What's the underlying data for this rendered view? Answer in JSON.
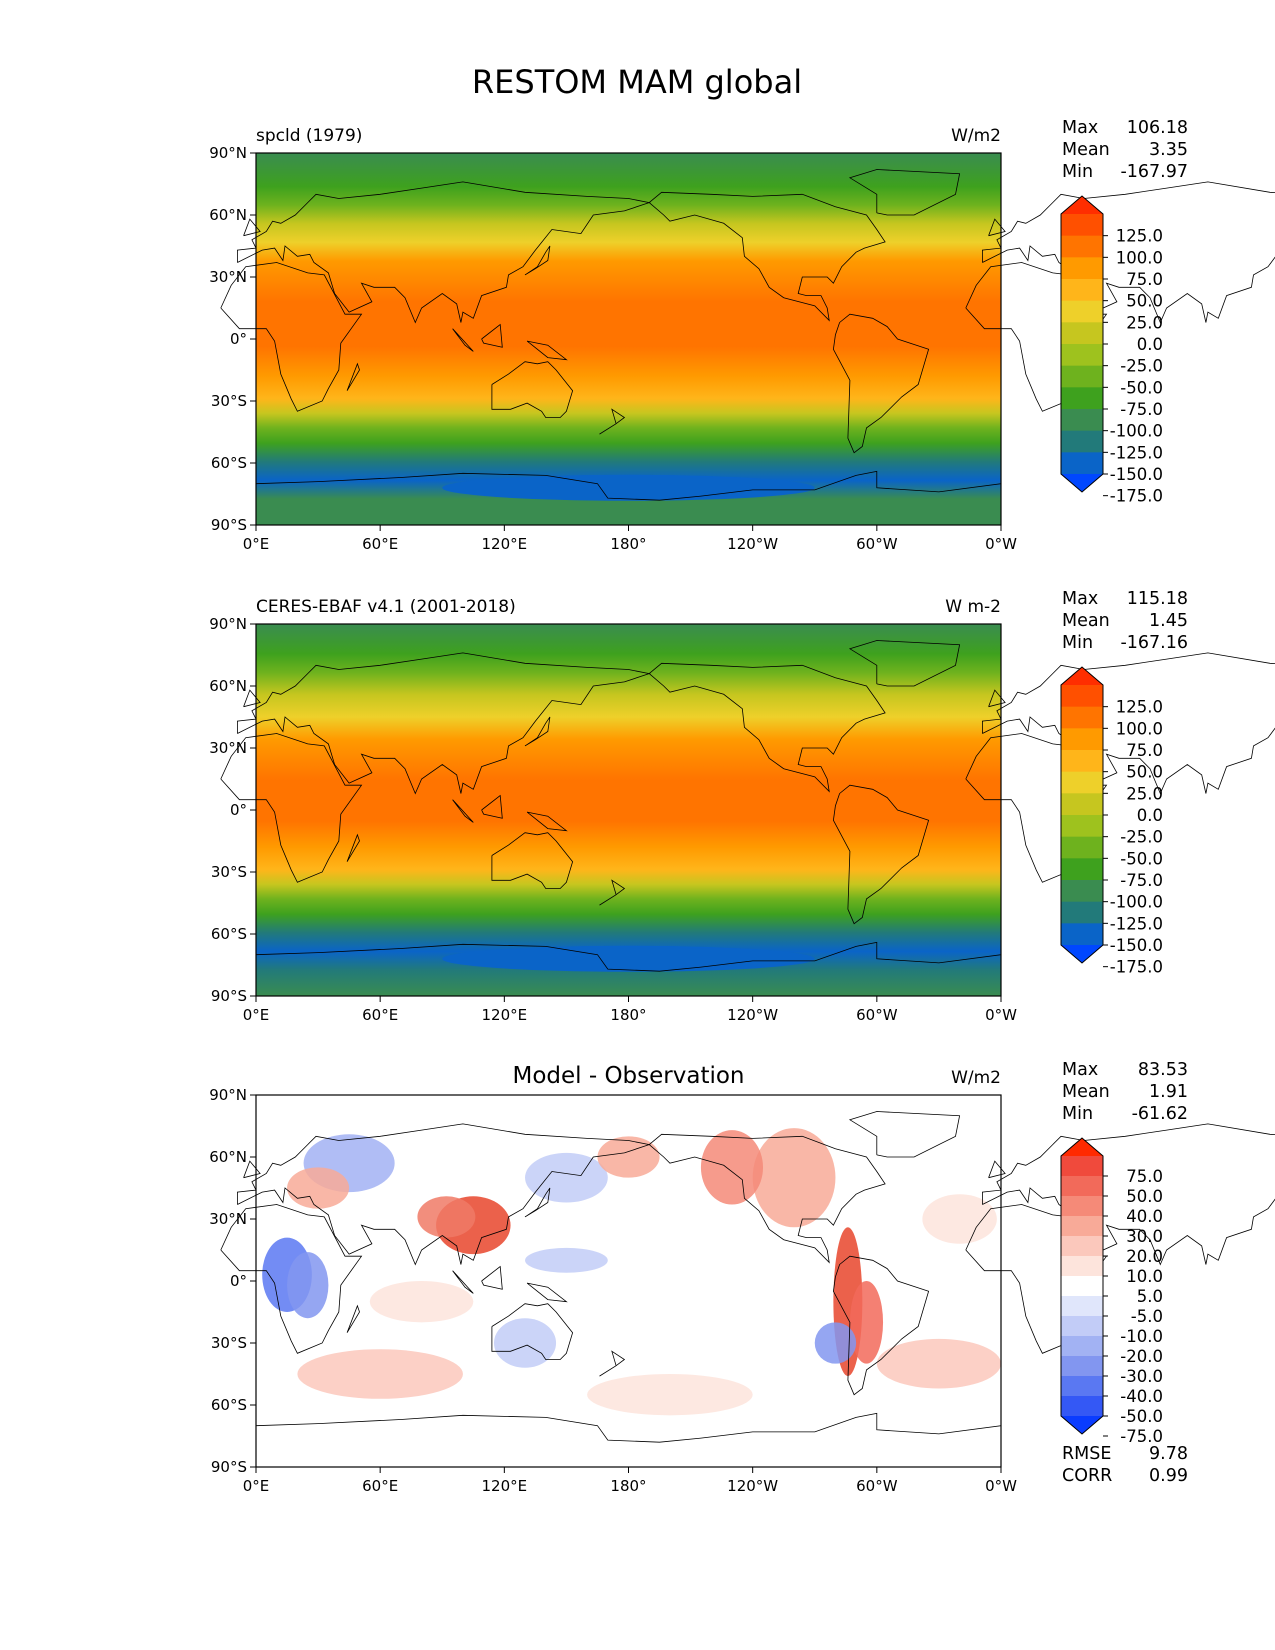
{
  "figure_title": "RESTOM MAM global",
  "lat_ticks": [
    "90°N",
    "60°N",
    "30°N",
    "0°",
    "30°S",
    "60°S",
    "90°S"
  ],
  "lon_ticks": [
    "0°E",
    "60°E",
    "120°E",
    "180°",
    "120°W",
    "60°W",
    "0°W"
  ],
  "chart_data": [
    {
      "type": "heatmap",
      "title": "",
      "left_label": "spcld (1979)",
      "units": "W/m2",
      "stats": [
        {
          "label": "Max",
          "value": "106.18"
        },
        {
          "label": "Mean",
          "value": "3.35"
        },
        {
          "label": "Min",
          "value": "-167.97"
        }
      ],
      "colorbar_ticks": [
        "125.0",
        "100.0",
        "75.0",
        "50.0",
        "25.0",
        "0.0",
        "-25.0",
        "-50.0",
        "-75.0",
        "-100.0",
        "-125.0",
        "-150.0",
        "-175.0"
      ],
      "colorbar_colors": [
        "#ff2e00",
        "#ff5000",
        "#ff7400",
        "#ff9a00",
        "#ffb51a",
        "#eed02a",
        "#c6c61f",
        "#9ec21e",
        "#6eb21e",
        "#3ea11e",
        "#3a8c50",
        "#227a7a",
        "#0a64c8",
        "#0047ff"
      ],
      "footer_stats": []
    },
    {
      "type": "heatmap",
      "title": "",
      "left_label": "CERES-EBAF v4.1 (2001-2018)",
      "units": "W m-2",
      "stats": [
        {
          "label": "Max",
          "value": "115.18"
        },
        {
          "label": "Mean",
          "value": "1.45"
        },
        {
          "label": "Min",
          "value": "-167.16"
        }
      ],
      "colorbar_ticks": [
        "125.0",
        "100.0",
        "75.0",
        "50.0",
        "25.0",
        "0.0",
        "-25.0",
        "-50.0",
        "-75.0",
        "-100.0",
        "-125.0",
        "-150.0",
        "-175.0"
      ],
      "colorbar_colors": [
        "#ff2e00",
        "#ff5000",
        "#ff7400",
        "#ff9a00",
        "#ffb51a",
        "#eed02a",
        "#c6c61f",
        "#9ec21e",
        "#6eb21e",
        "#3ea11e",
        "#3a8c50",
        "#227a7a",
        "#0a64c8",
        "#0047ff"
      ],
      "footer_stats": []
    },
    {
      "type": "heatmap",
      "title": "Model - Observation",
      "left_label": "",
      "units": "W/m2",
      "stats": [
        {
          "label": "Max",
          "value": "83.53"
        },
        {
          "label": "Mean",
          "value": "1.91"
        },
        {
          "label": "Min",
          "value": "-61.62"
        }
      ],
      "colorbar_ticks": [
        "75.0",
        "50.0",
        "40.0",
        "30.0",
        "20.0",
        "10.0",
        "5.0",
        "-5.0",
        "-10.0",
        "-20.0",
        "-30.0",
        "-40.0",
        "-50.0",
        "-75.0"
      ],
      "colorbar_colors": [
        "#ff2a00",
        "#f04a3c",
        "#f26a5a",
        "#f58a78",
        "#f8aa98",
        "#fbc8bc",
        "#fde4dc",
        "#ffffff",
        "#e0e6fb",
        "#c2ccf7",
        "#a2b2f3",
        "#8296f0",
        "#5a78f2",
        "#3458f5",
        "#0a3cff"
      ],
      "footer_stats": [
        {
          "label": "RMSE",
          "value": "9.78"
        },
        {
          "label": "CORR",
          "value": "0.99"
        }
      ]
    }
  ]
}
